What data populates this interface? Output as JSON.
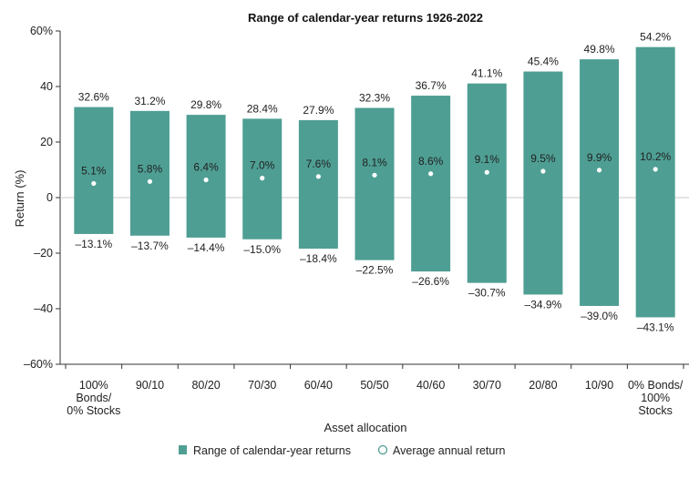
{
  "chart_data": {
    "type": "bar",
    "subtype": "floating-range-with-average-marker",
    "title": "Range of calendar-year returns 1926-2022",
    "xlabel": "Asset allocation",
    "ylabel": "Return (%)",
    "ylim": [
      -60,
      60
    ],
    "yticks": [
      60,
      40,
      20,
      0,
      -20,
      -40,
      -60
    ],
    "ytick_labels": [
      "60%",
      "40",
      "20",
      "0",
      "–20",
      "–40",
      "–60%"
    ],
    "grid": false,
    "zero_line": true,
    "legend_position": "bottom",
    "categories": [
      [
        "100%",
        "Bonds/",
        "0% Stocks"
      ],
      [
        "90/10"
      ],
      [
        "80/20"
      ],
      [
        "70/30"
      ],
      [
        "60/40"
      ],
      [
        "50/50"
      ],
      [
        "40/60"
      ],
      [
        "30/70"
      ],
      [
        "20/80"
      ],
      [
        "10/90"
      ],
      [
        "0% Bonds/",
        "100%",
        "Stocks"
      ]
    ],
    "series": [
      {
        "name": "Range of calendar-year returns",
        "color": "#4e9e93",
        "high": [
          32.6,
          31.2,
          29.8,
          28.4,
          27.9,
          32.3,
          36.7,
          41.1,
          45.4,
          49.8,
          54.2
        ],
        "low": [
          -13.1,
          -13.7,
          -14.4,
          -15.0,
          -18.4,
          -22.5,
          -26.6,
          -30.7,
          -34.9,
          -39.0,
          -43.1
        ],
        "high_labels": [
          "32.6%",
          "31.2%",
          "29.8%",
          "28.4%",
          "27.9%",
          "32.3%",
          "36.7%",
          "41.1%",
          "45.4%",
          "49.8%",
          "54.2%"
        ],
        "low_labels": [
          "–13.1%",
          "–13.7%",
          "–14.4%",
          "–15.0%",
          "–18.4%",
          "–22.5%",
          "–26.6%",
          "–30.7%",
          "–34.9%",
          "–39.0%",
          "–43.1%"
        ]
      },
      {
        "name": "Average annual return",
        "marker": "open-circle",
        "values": [
          5.1,
          5.8,
          6.4,
          7.0,
          7.6,
          8.1,
          8.6,
          9.1,
          9.5,
          9.9,
          10.2
        ],
        "labels": [
          "5.1%",
          "5.8%",
          "6.4%",
          "7.0%",
          "7.6%",
          "8.1%",
          "8.6%",
          "9.1%",
          "9.5%",
          "9.9%",
          "10.2%"
        ]
      }
    ]
  }
}
